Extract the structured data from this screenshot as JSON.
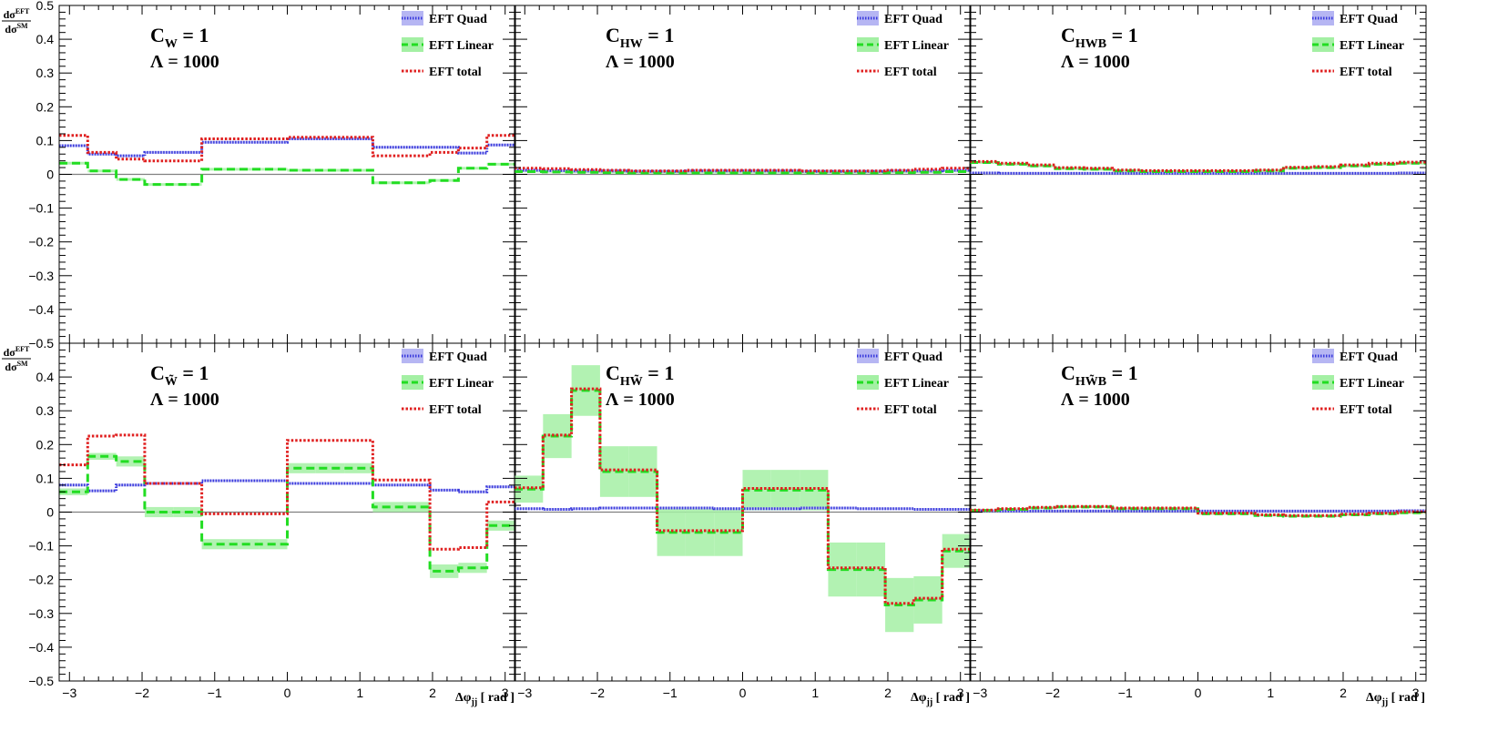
{
  "chart_data": {
    "type": "histogram",
    "layout": "2x3 grid of step-histogram panels with shared axes",
    "ylabel": {
      "num_main": "dσ",
      "num_sup": "EFT",
      "den_main": "dσ",
      "den_sup": "SM"
    },
    "xlabel": {
      "main": "Δφ",
      "sub": "jj",
      "rest": "[ rad ]"
    },
    "xlim": [
      -3.1416,
      3.1416
    ],
    "ylim": [
      -0.5,
      0.5
    ],
    "x_ticks": [
      -3,
      -2,
      -1,
      0,
      1,
      2,
      3
    ],
    "x_tick_labels": [
      "−3",
      "−2",
      "−1",
      "0",
      "1",
      "2",
      "3"
    ],
    "y_ticks": [
      -0.5,
      -0.4,
      -0.3,
      -0.2,
      -0.1,
      0,
      0.1,
      0.2,
      0.3,
      0.4,
      0.5
    ],
    "y_tick_labels": [
      "−0.5",
      "−0.4",
      "−0.3",
      "−0.2",
      "−0.1",
      "0",
      "0.1",
      "0.2",
      "0.3",
      "0.4",
      "0.5"
    ],
    "bin_edges": [
      -3.1416,
      -2.7489,
      -2.3562,
      -1.9635,
      -1.5708,
      -1.1781,
      -0.7854,
      -0.3927,
      0,
      0.3927,
      0.7854,
      1.1781,
      1.5708,
      1.9635,
      2.3562,
      2.7489,
      3.1416
    ],
    "legend": {
      "position": "top-right",
      "entries": [
        "EFT Quad",
        "EFT Linear",
        "EFT total"
      ]
    },
    "colors": {
      "quad": "#3a3adc",
      "quad_band": "#b6b6f3",
      "linear": "#22dd22",
      "linear_band": "#a4f0a4",
      "total": "#e02020",
      "zero_line": "#808080"
    },
    "panels": [
      {
        "coef_main": "C",
        "coef_sub": "W",
        "lambda": "Λ = 1000",
        "quad": [
          0.085,
          0.06,
          0.055,
          0.065,
          0.065,
          0.095,
          0.095,
          0.095,
          0.105,
          0.105,
          0.105,
          0.08,
          0.08,
          0.08,
          0.063,
          0.087
        ],
        "linear": [
          0.033,
          0.01,
          -0.015,
          -0.03,
          -0.03,
          0.015,
          0.015,
          0.015,
          0.012,
          0.012,
          0.012,
          -0.025,
          -0.025,
          -0.018,
          0.018,
          0.03
        ],
        "total": [
          0.115,
          0.065,
          0.045,
          0.04,
          0.04,
          0.105,
          0.105,
          0.105,
          0.11,
          0.11,
          0.11,
          0.055,
          0.055,
          0.065,
          0.078,
          0.115
        ],
        "linear_err": [
          0.004,
          0.004,
          0.004,
          0.004,
          0.004,
          0.004,
          0.004,
          0.004,
          0.004,
          0.004,
          0.004,
          0.004,
          0.004,
          0.004,
          0.004,
          0.004
        ]
      },
      {
        "coef_main": "C",
        "coef_sub": "HW",
        "lambda": "Λ = 1000",
        "quad": [
          0.012,
          0.011,
          0.01,
          0.01,
          0.009,
          0.009,
          0.01,
          0.01,
          0.01,
          0.01,
          0.009,
          0.009,
          0.009,
          0.01,
          0.01,
          0.012
        ],
        "linear": [
          0.008,
          0.007,
          0.006,
          0.005,
          0.004,
          0.004,
          0.004,
          0.004,
          0.004,
          0.004,
          0.004,
          0.004,
          0.004,
          0.005,
          0.006,
          0.008
        ],
        "total": [
          0.018,
          0.017,
          0.014,
          0.012,
          0.01,
          0.01,
          0.012,
          0.012,
          0.012,
          0.012,
          0.01,
          0.01,
          0.01,
          0.012,
          0.015,
          0.018
        ],
        "linear_err": [
          0.002,
          0.002,
          0.002,
          0.002,
          0.002,
          0.002,
          0.002,
          0.002,
          0.002,
          0.002,
          0.002,
          0.002,
          0.002,
          0.002,
          0.002,
          0.002
        ]
      },
      {
        "coef_main": "C",
        "coef_sub": "HWB",
        "lambda": "Λ = 1000",
        "quad": [
          0.004,
          0.003,
          0.003,
          0.003,
          0.003,
          0.003,
          0.003,
          0.003,
          0.003,
          0.003,
          0.003,
          0.003,
          0.003,
          0.003,
          0.003,
          0.004
        ],
        "linear": [
          0.035,
          0.03,
          0.025,
          0.017,
          0.015,
          0.01,
          0.008,
          0.008,
          0.008,
          0.008,
          0.01,
          0.018,
          0.02,
          0.025,
          0.03,
          0.033
        ],
        "total": [
          0.038,
          0.033,
          0.028,
          0.02,
          0.018,
          0.013,
          0.011,
          0.011,
          0.011,
          0.011,
          0.013,
          0.021,
          0.023,
          0.028,
          0.033,
          0.036
        ],
        "linear_err": [
          0.004,
          0.004,
          0.004,
          0.004,
          0.004,
          0.004,
          0.004,
          0.004,
          0.004,
          0.004,
          0.004,
          0.004,
          0.004,
          0.004,
          0.004,
          0.004
        ]
      },
      {
        "coef_main": "C",
        "coef_sub": "W̃",
        "lambda": "Λ = 1000",
        "quad": [
          0.08,
          0.063,
          0.08,
          0.085,
          0.085,
          0.093,
          0.093,
          0.093,
          0.085,
          0.085,
          0.085,
          0.08,
          0.08,
          0.065,
          0.06,
          0.075
        ],
        "linear": [
          0.06,
          0.165,
          0.15,
          0.0,
          0.0,
          -0.095,
          -0.095,
          -0.095,
          0.13,
          0.13,
          0.13,
          0.015,
          0.015,
          -0.175,
          -0.165,
          -0.04
        ],
        "total": [
          0.14,
          0.225,
          0.228,
          0.085,
          0.085,
          -0.005,
          -0.005,
          -0.005,
          0.212,
          0.212,
          0.212,
          0.095,
          0.095,
          -0.11,
          -0.105,
          0.03
        ],
        "linear_err": [
          0.01,
          0.01,
          0.015,
          0.015,
          0.015,
          0.015,
          0.015,
          0.015,
          0.015,
          0.015,
          0.015,
          0.015,
          0.015,
          0.02,
          0.015,
          0.015
        ]
      },
      {
        "coef_main": "C",
        "coef_sub": "HW̃",
        "lambda": "Λ = 1000",
        "quad": [
          0.01,
          0.008,
          0.01,
          0.012,
          0.012,
          0.012,
          0.012,
          0.01,
          0.01,
          0.01,
          0.012,
          0.012,
          0.01,
          0.01,
          0.008,
          0.008
        ],
        "linear": [
          0.068,
          0.225,
          0.36,
          0.12,
          0.12,
          -0.06,
          -0.06,
          -0.06,
          0.065,
          0.065,
          0.065,
          -0.17,
          -0.17,
          -0.275,
          -0.26,
          -0.115
        ],
        "total": [
          0.072,
          0.228,
          0.365,
          0.125,
          0.125,
          -0.055,
          -0.055,
          -0.055,
          0.07,
          0.07,
          0.07,
          -0.165,
          -0.165,
          -0.27,
          -0.255,
          -0.11
        ],
        "linear_err": [
          0.04,
          0.065,
          0.075,
          0.075,
          0.075,
          0.07,
          0.07,
          0.07,
          0.06,
          0.06,
          0.06,
          0.08,
          0.08,
          0.08,
          0.07,
          0.05
        ]
      },
      {
        "coef_main": "C",
        "coef_sub": "HW̃B",
        "lambda": "Λ = 1000",
        "quad": [
          0.004,
          0.003,
          0.003,
          0.003,
          0.003,
          0.003,
          0.003,
          0.003,
          0.003,
          0.003,
          0.003,
          0.003,
          0.003,
          0.003,
          0.003,
          0.004
        ],
        "linear": [
          0.005,
          0.008,
          0.012,
          0.015,
          0.015,
          0.01,
          0.01,
          0.01,
          -0.005,
          -0.005,
          -0.01,
          -0.012,
          -0.012,
          -0.008,
          -0.005,
          -0.002
        ],
        "total": [
          0.006,
          0.01,
          0.014,
          0.017,
          0.017,
          0.012,
          0.012,
          0.012,
          -0.003,
          -0.003,
          -0.008,
          -0.01,
          -0.01,
          -0.006,
          -0.003,
          0.001
        ],
        "linear_err": [
          0.003,
          0.003,
          0.003,
          0.003,
          0.003,
          0.003,
          0.003,
          0.003,
          0.003,
          0.003,
          0.003,
          0.003,
          0.003,
          0.003,
          0.003,
          0.003
        ]
      }
    ]
  }
}
